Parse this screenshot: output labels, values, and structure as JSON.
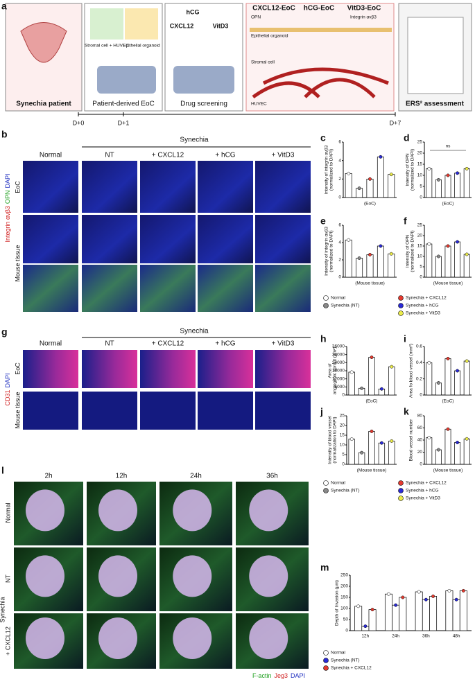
{
  "figure": {
    "panel_labels": [
      "a",
      "b",
      "c",
      "d",
      "e",
      "f",
      "g",
      "h",
      "i",
      "j",
      "k",
      "l",
      "m"
    ],
    "a": {
      "boxes": [
        "Synechia patient",
        "Patient-derived EoC",
        "Drug screening"
      ],
      "eoc_labels": [
        "Stromal cell + HUVEC",
        "Epithelial organoid"
      ],
      "drugs": [
        "hCG",
        "CXCL12",
        "VitD3"
      ],
      "schematic_headers": [
        "CXCL12-EoC",
        "hCG-EoC",
        "VitD3-EoC"
      ],
      "schematic_labels": [
        "OPN",
        "Integrin αvβ3",
        "Epithelial organoid",
        "Stromal cell",
        "HUVEC"
      ],
      "ers": "ERS² assessment",
      "timeline": [
        "D+0",
        "D+1",
        "D+7"
      ]
    },
    "b": {
      "group": "Synechia",
      "columns": [
        "Normal",
        "NT",
        "+ CXCL12",
        "+ hCG",
        "+ VitD3"
      ],
      "rows": [
        "EoC",
        "Mouse tissue"
      ],
      "stain": [
        "Integrin αvβ3",
        "OPN",
        "DAPI"
      ]
    },
    "g": {
      "group": "Synechia",
      "columns": [
        "Normal",
        "NT",
        "+ CXCL12",
        "+ hCG",
        "+ VitD3"
      ],
      "rows": [
        "EoC",
        "Mouse tissue"
      ],
      "stain": [
        "CD31",
        "DAPI"
      ]
    },
    "l": {
      "columns": [
        "2h",
        "12h",
        "24h",
        "36h"
      ],
      "rows": [
        "Normal",
        "NT",
        "+ CXCL12"
      ],
      "group": "Synechia",
      "stain": [
        "F-actin",
        "Jeg3",
        "DAPI"
      ]
    },
    "legend5": {
      "names": [
        "Normal",
        "Synechia (NT)",
        "Synechia + CXCL12",
        "Synechia + hCG",
        "Synechia + VitD3"
      ],
      "colors": [
        "#ffffff",
        "#8a8a8a",
        "#e53a2f",
        "#2a2ad8",
        "#ecec4a"
      ]
    },
    "legend3": {
      "names": [
        "Normal",
        "Synechia (NT)",
        "Synechia + CXCL12"
      ],
      "colors": [
        "#ffffff",
        "#2a2ad8",
        "#e53a2f"
      ]
    }
  },
  "chart_data": [
    {
      "type": "bar",
      "ylabel": [
        "Intensity of integrin αvβ3",
        "(normalized to DAPI)"
      ],
      "xlabel": "(EoC)",
      "values": [
        2.6,
        1.0,
        2.0,
        4.4,
        2.5
      ],
      "colors": [
        "#ffffff",
        "#8a8a8a",
        "#e53a2f",
        "#2a2ad8",
        "#ecec4a"
      ],
      "ylim": [
        0,
        6
      ],
      "yticks": [
        0,
        2,
        4,
        6
      ]
    },
    {
      "type": "bar",
      "ylabel": [
        "Intensity of OPN",
        "(normalized to DAPI)"
      ],
      "xlabel": "(EoC)",
      "values": [
        13,
        8,
        10,
        11,
        13
      ],
      "colors": [
        "#ffffff",
        "#8a8a8a",
        "#e53a2f",
        "#2a2ad8",
        "#ecec4a"
      ],
      "ylim": [
        0,
        25
      ],
      "yticks": [
        0,
        5,
        10,
        15,
        20,
        25
      ],
      "annotation": "ns"
    },
    {
      "type": "bar",
      "ylabel": [
        "Intensity of integrin αvβ3",
        "(normalized to DAPI)"
      ],
      "xlabel": "(Mouse tissue)",
      "values": [
        4.3,
        2.2,
        2.6,
        3.6,
        2.7
      ],
      "colors": [
        "#ffffff",
        "#8a8a8a",
        "#e53a2f",
        "#2a2ad8",
        "#ecec4a"
      ],
      "ylim": [
        0,
        6
      ],
      "yticks": [
        0,
        2,
        4,
        6
      ]
    },
    {
      "type": "bar",
      "ylabel": [
        "Intensity of OPN",
        "(normalized to DAPI)"
      ],
      "xlabel": "(Mouse tissue)",
      "values": [
        16,
        10,
        15,
        17,
        11
      ],
      "colors": [
        "#ffffff",
        "#8a8a8a",
        "#e53a2f",
        "#2a2ad8",
        "#ecec4a"
      ],
      "ylim": [
        0,
        25
      ],
      "yticks": [
        0,
        5,
        10,
        15,
        20,
        25
      ]
    },
    {
      "type": "bar",
      "ylabel": [
        "Area of",
        "angiogenic sprout (μm²)"
      ],
      "xlabel": "(EoC)",
      "values": [
        17000,
        5000,
        28000,
        4500,
        21000
      ],
      "colors": [
        "#ffffff",
        "#8a8a8a",
        "#e53a2f",
        "#2a2ad8",
        "#ecec4a"
      ],
      "ylim": [
        0,
        36000
      ],
      "yticks": [
        0,
        6000,
        12000,
        18000,
        24000,
        30000,
        36000
      ]
    },
    {
      "type": "bar",
      "ylabel": [
        "Area fo blood vessel (mm²)"
      ],
      "xlabel": "(EoC)",
      "values": [
        0.4,
        0.15,
        0.45,
        0.3,
        0.42
      ],
      "colors": [
        "#ffffff",
        "#8a8a8a",
        "#e53a2f",
        "#2a2ad8",
        "#ecec4a"
      ],
      "ylim": [
        0,
        0.6
      ],
      "yticks": [
        0,
        0.2,
        0.4,
        0.6
      ]
    },
    {
      "type": "bar",
      "ylabel": [
        "Intensity of blood vessel",
        "(normalization to DAPI)"
      ],
      "xlabel": "(Mouse tissue)",
      "values": [
        13,
        6,
        17,
        11,
        12
      ],
      "colors": [
        "#ffffff",
        "#8a8a8a",
        "#e53a2f",
        "#2a2ad8",
        "#ecec4a"
      ],
      "ylim": [
        0,
        25
      ],
      "yticks": [
        0,
        5,
        10,
        15,
        20,
        25
      ]
    },
    {
      "type": "bar",
      "ylabel": [
        "Blood vessel number"
      ],
      "xlabel": "(Mouse tissue)",
      "values": [
        44,
        24,
        58,
        36,
        42
      ],
      "colors": [
        "#ffffff",
        "#8a8a8a",
        "#e53a2f",
        "#2a2ad8",
        "#ecec4a"
      ],
      "ylim": [
        0,
        80
      ],
      "yticks": [
        0,
        20,
        40,
        60,
        80
      ]
    },
    {
      "type": "grouped",
      "ylabel": [
        "Depth of Invasion (μm)"
      ],
      "categories": [
        "12h",
        "24h",
        "36h",
        "48h"
      ],
      "series": [
        {
          "name": "Normal",
          "color": "#ffffff",
          "values": [
            110,
            165,
            175,
            180
          ]
        },
        {
          "name": "Synechia (NT)",
          "color": "#2a2ad8",
          "values": [
            20,
            115,
            140,
            140
          ]
        },
        {
          "name": "Synechia + CXCL12",
          "color": "#e53a2f",
          "values": [
            95,
            150,
            155,
            180
          ]
        }
      ],
      "ylim": [
        0,
        250
      ],
      "yticks": [
        0,
        50,
        100,
        150,
        200,
        250
      ]
    }
  ]
}
